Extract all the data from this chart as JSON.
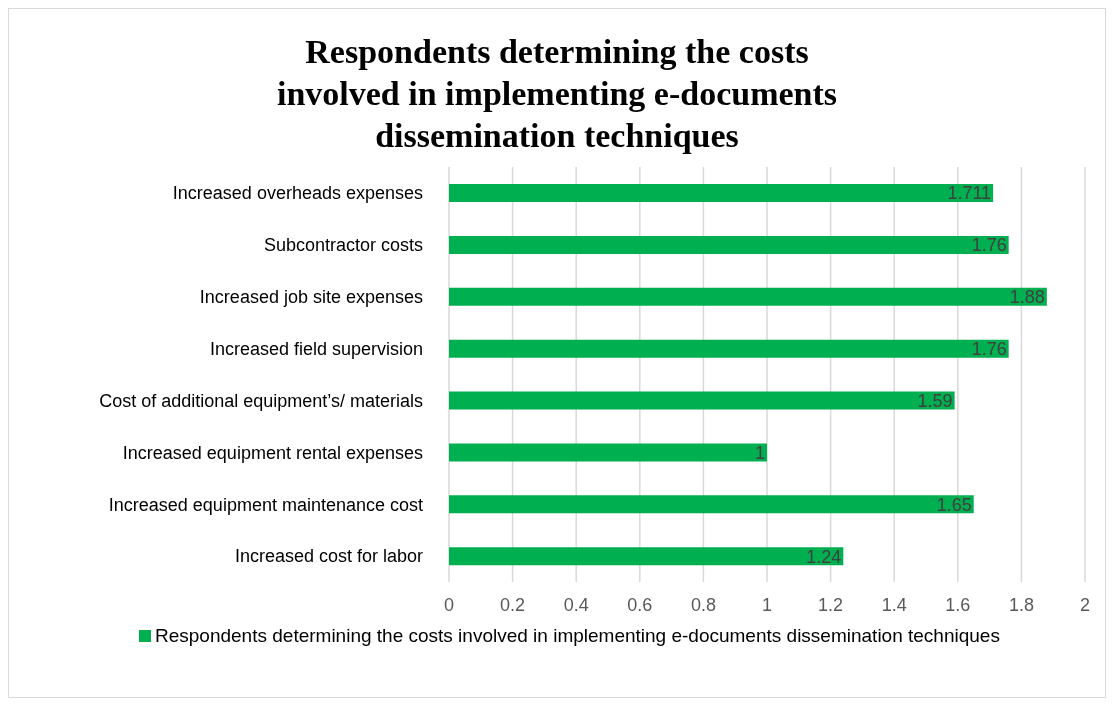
{
  "chart_data": {
    "type": "bar",
    "orientation": "horizontal",
    "title": "Respondents determining the costs involved in implementing e-documents dissemination techniques",
    "categories": [
      "Increased overheads expenses",
      "Subcontractor costs",
      "Increased job site expenses",
      "Increased field supervision",
      "Cost of additional equipment’s/ materials",
      "Increased equipment rental expenses",
      "Increased equipment maintenance cost",
      "Increased cost for labor"
    ],
    "series": [
      {
        "name": "Respondents determining the costs involved in implementing e-documents dissemination techniques",
        "color": "#00b050",
        "values": [
          1.711,
          1.76,
          1.88,
          1.76,
          1.59,
          1,
          1.65,
          1.24
        ]
      }
    ],
    "xlim": [
      0,
      2
    ],
    "xticks": [
      0,
      0.2,
      0.4,
      0.6,
      0.8,
      1,
      1.2,
      1.4,
      1.6,
      1.8,
      2
    ],
    "grid": "x",
    "legend": "bottom",
    "data_labels": true
  }
}
